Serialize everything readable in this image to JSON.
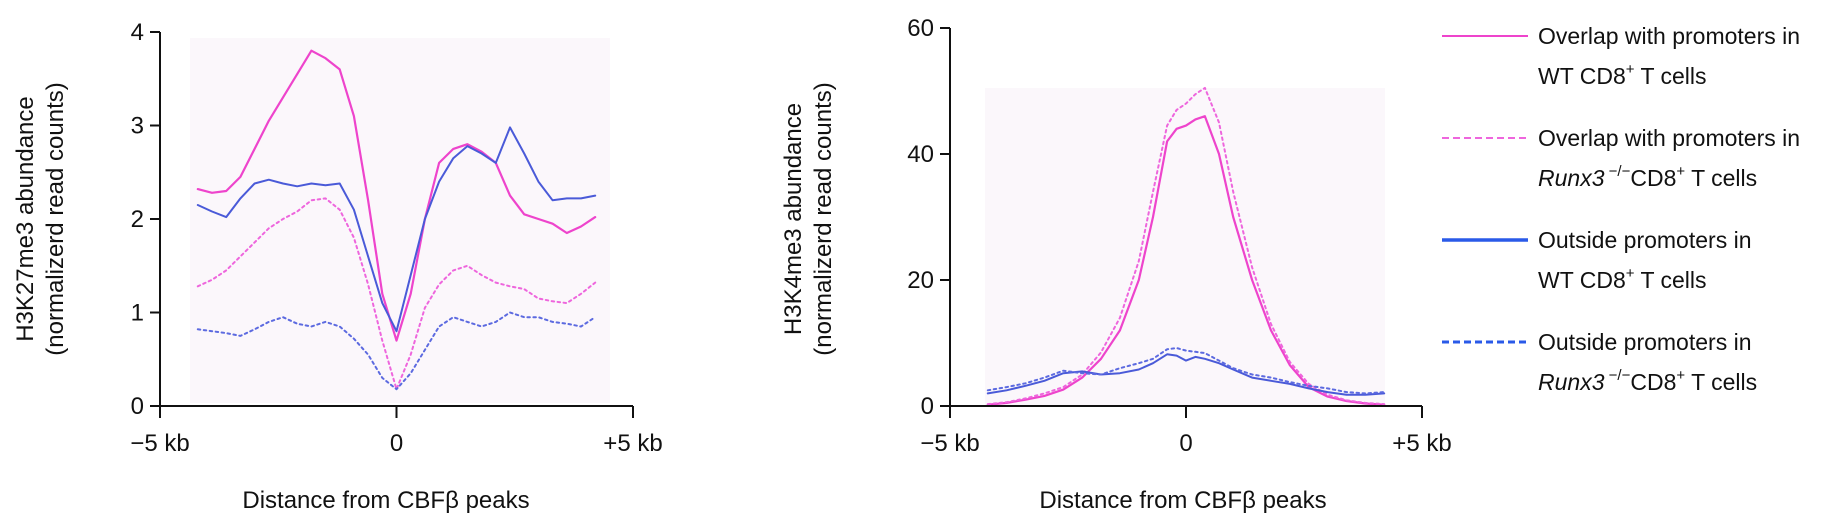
{
  "chart_data": [
    {
      "type": "line",
      "xlabel_prefix": "Distance from CBF",
      "xlabel_symbol": "β",
      "xlabel_suffix": " peaks",
      "ylabel_line1": "H3K27me3 abundance",
      "ylabel_line2": "(normalizerd read counts)",
      "xlim": [
        -5,
        5
      ],
      "ylim": [
        0,
        4
      ],
      "x_ticks": [
        {
          "value": -5,
          "label": "−5 kb"
        },
        {
          "value": 0,
          "label": "0"
        },
        {
          "value": 5,
          "label": "+5 kb"
        }
      ],
      "y_ticks": [
        {
          "value": 0,
          "label": "0"
        },
        {
          "value": 1,
          "label": "1"
        },
        {
          "value": 2,
          "label": "2"
        },
        {
          "value": 3,
          "label": "3"
        },
        {
          "value": 4,
          "label": "4"
        }
      ],
      "grid": false,
      "series": [
        {
          "key": "overlap_wt",
          "color": "#ee44cc",
          "dash": "solid",
          "width": 2.2,
          "x": [
            -4.2,
            -3.9,
            -3.6,
            -3.3,
            -3.0,
            -2.7,
            -2.4,
            -2.1,
            -1.8,
            -1.5,
            -1.2,
            -0.9,
            -0.6,
            -0.3,
            0.0,
            0.3,
            0.6,
            0.9,
            1.2,
            1.5,
            1.8,
            2.1,
            2.4,
            2.7,
            3.0,
            3.3,
            3.6,
            3.9,
            4.2
          ],
          "y": [
            2.32,
            2.28,
            2.3,
            2.45,
            2.75,
            3.05,
            3.3,
            3.55,
            3.8,
            3.72,
            3.6,
            3.1,
            2.2,
            1.2,
            0.7,
            1.2,
            2.0,
            2.6,
            2.75,
            2.8,
            2.72,
            2.6,
            2.25,
            2.05,
            2.0,
            1.95,
            1.85,
            1.92,
            2.02
          ]
        },
        {
          "key": "overlap_runx3",
          "color": "#ee66dd",
          "dash": "dotted",
          "width": 2,
          "x": [
            -4.2,
            -3.9,
            -3.6,
            -3.3,
            -3.0,
            -2.7,
            -2.4,
            -2.1,
            -1.8,
            -1.5,
            -1.2,
            -0.9,
            -0.6,
            -0.3,
            0.0,
            0.3,
            0.6,
            0.9,
            1.2,
            1.5,
            1.8,
            2.1,
            2.4,
            2.7,
            3.0,
            3.3,
            3.6,
            3.9,
            4.2
          ],
          "y": [
            1.28,
            1.35,
            1.45,
            1.6,
            1.75,
            1.9,
            2.0,
            2.08,
            2.2,
            2.22,
            2.1,
            1.8,
            1.3,
            0.7,
            0.18,
            0.55,
            1.05,
            1.3,
            1.45,
            1.5,
            1.4,
            1.32,
            1.28,
            1.25,
            1.15,
            1.12,
            1.1,
            1.2,
            1.32
          ]
        },
        {
          "key": "outside_wt",
          "color": "#4a5ad8",
          "dash": "solid",
          "width": 2,
          "x": [
            -4.2,
            -3.9,
            -3.6,
            -3.3,
            -3.0,
            -2.7,
            -2.4,
            -2.1,
            -1.8,
            -1.5,
            -1.2,
            -0.9,
            -0.6,
            -0.3,
            0.0,
            0.3,
            0.6,
            0.9,
            1.2,
            1.5,
            1.8,
            2.1,
            2.4,
            2.7,
            3.0,
            3.3,
            3.6,
            3.9,
            4.2
          ],
          "y": [
            2.15,
            2.08,
            2.02,
            2.22,
            2.38,
            2.42,
            2.38,
            2.35,
            2.38,
            2.36,
            2.38,
            2.1,
            1.6,
            1.1,
            0.8,
            1.4,
            2.0,
            2.4,
            2.65,
            2.78,
            2.7,
            2.6,
            2.98,
            2.7,
            2.4,
            2.2,
            2.22,
            2.22,
            2.25
          ]
        },
        {
          "key": "outside_runx3",
          "color": "#5c6ae0",
          "dash": "dotted",
          "width": 2,
          "x": [
            -4.2,
            -3.9,
            -3.6,
            -3.3,
            -3.0,
            -2.7,
            -2.4,
            -2.1,
            -1.8,
            -1.5,
            -1.2,
            -0.9,
            -0.6,
            -0.3,
            0.0,
            0.3,
            0.6,
            0.9,
            1.2,
            1.5,
            1.8,
            2.1,
            2.4,
            2.7,
            3.0,
            3.3,
            3.6,
            3.9,
            4.2
          ],
          "y": [
            0.82,
            0.8,
            0.78,
            0.75,
            0.82,
            0.9,
            0.95,
            0.88,
            0.85,
            0.9,
            0.85,
            0.72,
            0.55,
            0.3,
            0.18,
            0.35,
            0.6,
            0.85,
            0.95,
            0.9,
            0.85,
            0.9,
            1.0,
            0.95,
            0.95,
            0.9,
            0.88,
            0.85,
            0.95
          ]
        }
      ]
    },
    {
      "type": "line",
      "xlabel_prefix": "Distance from CBF",
      "xlabel_symbol": "β",
      "xlabel_suffix": " peaks",
      "ylabel_line1": "H3K4me3 abundance",
      "ylabel_line2": "(normalizerd read counts)",
      "xlim": [
        -5,
        5
      ],
      "ylim": [
        0,
        60
      ],
      "x_ticks": [
        {
          "value": -5,
          "label": "−5 kb"
        },
        {
          "value": 0,
          "label": "0"
        },
        {
          "value": 5,
          "label": "+5 kb"
        }
      ],
      "y_ticks": [
        {
          "value": 0,
          "label": "0"
        },
        {
          "value": 20,
          "label": "20"
        },
        {
          "value": 40,
          "label": "40"
        },
        {
          "value": 60,
          "label": "60"
        }
      ],
      "grid": false,
      "series": [
        {
          "key": "overlap_wt",
          "color": "#ee44cc",
          "dash": "solid",
          "width": 2.2,
          "x": [
            -4.2,
            -3.8,
            -3.4,
            -3.0,
            -2.6,
            -2.2,
            -1.8,
            -1.4,
            -1.0,
            -0.7,
            -0.4,
            -0.2,
            0.0,
            0.2,
            0.4,
            0.7,
            1.0,
            1.4,
            1.8,
            2.2,
            2.6,
            3.0,
            3.4,
            3.8,
            4.2
          ],
          "y": [
            0.2,
            0.5,
            1.0,
            1.6,
            2.6,
            4.5,
            7.5,
            12.0,
            20.0,
            30.0,
            42.0,
            44.0,
            44.5,
            45.5,
            46.0,
            40.0,
            30.0,
            20.0,
            12.0,
            6.5,
            3.0,
            1.5,
            0.8,
            0.4,
            0.2
          ]
        },
        {
          "key": "overlap_runx3",
          "color": "#ee66dd",
          "dash": "dotted",
          "width": 2,
          "x": [
            -4.2,
            -3.8,
            -3.4,
            -3.0,
            -2.6,
            -2.2,
            -1.8,
            -1.4,
            -1.0,
            -0.7,
            -0.4,
            -0.2,
            0.0,
            0.2,
            0.4,
            0.7,
            1.0,
            1.4,
            1.8,
            2.2,
            2.6,
            3.0,
            3.4,
            3.8,
            4.2
          ],
          "y": [
            0.3,
            0.6,
            1.2,
            2.0,
            3.0,
            5.0,
            8.5,
            14.0,
            23.0,
            34.0,
            44.5,
            47.0,
            48.0,
            49.5,
            50.5,
            45.0,
            34.0,
            22.0,
            13.0,
            7.0,
            3.5,
            1.8,
            0.9,
            0.5,
            0.3
          ]
        },
        {
          "key": "outside_wt",
          "color": "#4a5ad8",
          "dash": "solid",
          "width": 2,
          "x": [
            -4.2,
            -3.8,
            -3.4,
            -3.0,
            -2.6,
            -2.2,
            -1.8,
            -1.4,
            -1.0,
            -0.7,
            -0.4,
            -0.2,
            0.0,
            0.2,
            0.4,
            0.7,
            1.0,
            1.4,
            1.8,
            2.2,
            2.6,
            3.0,
            3.4,
            3.8,
            4.2
          ],
          "y": [
            2.0,
            2.5,
            3.2,
            4.0,
            5.2,
            5.5,
            5.0,
            5.2,
            5.8,
            6.8,
            8.2,
            8.0,
            7.2,
            7.8,
            7.5,
            6.8,
            5.8,
            4.5,
            4.0,
            3.5,
            2.8,
            2.2,
            1.8,
            1.8,
            2.0
          ]
        },
        {
          "key": "outside_runx3",
          "color": "#5c6ae0",
          "dash": "dotted",
          "width": 2,
          "x": [
            -4.2,
            -3.8,
            -3.4,
            -3.0,
            -2.6,
            -2.2,
            -1.8,
            -1.4,
            -1.0,
            -0.7,
            -0.4,
            -0.2,
            0.0,
            0.2,
            0.4,
            0.7,
            1.0,
            1.4,
            1.8,
            2.2,
            2.6,
            3.0,
            3.4,
            3.8,
            4.2
          ],
          "y": [
            2.5,
            3.0,
            3.6,
            4.5,
            5.6,
            5.2,
            5.0,
            6.0,
            6.8,
            7.5,
            9.0,
            9.2,
            8.8,
            8.6,
            8.4,
            7.2,
            6.0,
            5.0,
            4.5,
            3.8,
            3.2,
            2.8,
            2.2,
            2.0,
            2.2
          ]
        }
      ]
    }
  ],
  "legend": [
    {
      "key": "overlap_wt",
      "color": "#ee44cc",
      "dash": "solid",
      "width": 2,
      "line1": "Overlap with promoters in",
      "line2_italic": "",
      "line2_sup_a": "",
      "line2_mid": "WT CD8",
      "line2_sup_b": "+",
      "line2_tail": "  T cells"
    },
    {
      "key": "overlap_runx3",
      "color": "#ee66dd",
      "dash": "dashed",
      "width": 2,
      "line1": "Overlap with promoters in",
      "line2_italic": "Runx3",
      "line2_sup_a": " −/−",
      "line2_mid": "CD8",
      "line2_sup_b": "+",
      "line2_tail": " T cells"
    },
    {
      "key": "outside_wt",
      "color": "#2a5ae8",
      "dash": "solid",
      "width": 3.5,
      "line1": "Outside promoters in",
      "line2_italic": "",
      "line2_sup_a": "",
      "line2_mid": "WT CD8",
      "line2_sup_b": "+",
      "line2_tail": "  T cells"
    },
    {
      "key": "outside_runx3",
      "color": "#2a5ae8",
      "dash": "dashed",
      "width": 3,
      "line1": "Outside promoters in",
      "line2_italic": "Runx3",
      "line2_sup_a": " −/−",
      "line2_mid": "CD8",
      "line2_sup_b": "+",
      "line2_tail": " T cells"
    }
  ]
}
